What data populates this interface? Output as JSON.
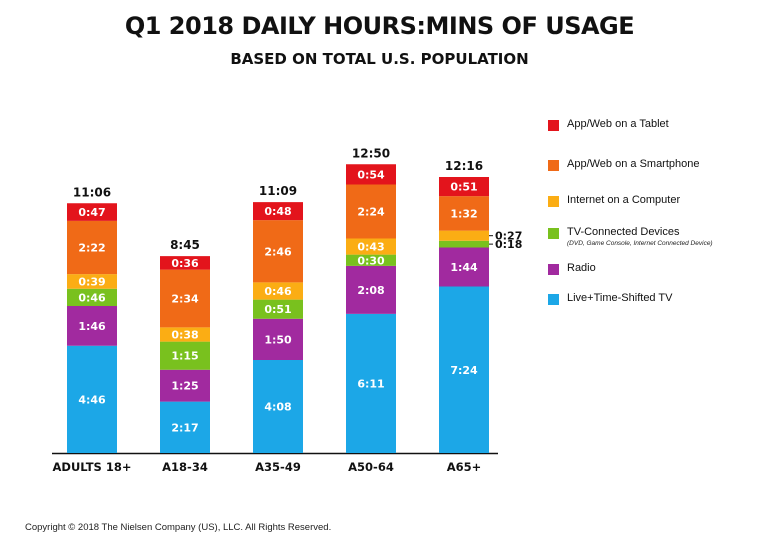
{
  "title": "Q1 2018 DAILY HOURS:MINS OF USAGE",
  "subtitle": "BASED ON TOTAL U.S. POPULATION",
  "copyright": "Copyright © 2018 The Nielsen Company (US), LLC. All Rights Reserved.",
  "chart_data": {
    "type": "bar",
    "stacked": true,
    "categories": [
      "ADULTS 18+",
      "A18-34",
      "A35-49",
      "A50-64",
      "A65+"
    ],
    "totals": [
      "11:06",
      "8:45",
      "11:09",
      "12:50",
      "12:16"
    ],
    "series": [
      {
        "name": "Live+Time-Shifted TV",
        "color": "#1ca7e7",
        "values": [
          "4:46",
          "2:17",
          "4:08",
          "6:11",
          "7:24"
        ]
      },
      {
        "name": "Radio",
        "color": "#a12a9f",
        "values": [
          "1:46",
          "1:25",
          "1:50",
          "2:08",
          "1:44"
        ]
      },
      {
        "name": "TV-Connected Devices",
        "color": "#79c11e",
        "values": [
          "0:46",
          "1:15",
          "0:51",
          "0:30",
          "0:18"
        ]
      },
      {
        "name": "Internet on a Computer",
        "color": "#fbad14",
        "values": [
          "0:39",
          "0:38",
          "0:46",
          "0:43",
          "0:27"
        ]
      },
      {
        "name": "App/Web on a Smartphone",
        "color": "#f06a17",
        "values": [
          "2:22",
          "2:34",
          "2:46",
          "2:24",
          "1:32"
        ]
      },
      {
        "name": "App/Web on a Tablet",
        "color": "#e3141c",
        "values": [
          "0:47",
          "0:36",
          "0:48",
          "0:54",
          "0:51"
        ]
      }
    ],
    "legend_position": "right",
    "legend_order": [
      "App/Web on a Tablet",
      "App/Web on a Smartphone",
      "Internet on a Computer",
      "TV-Connected Devices",
      "Radio",
      "Live+Time-Shifted TV"
    ],
    "legend_notes": {
      "TV-Connected Devices": "(DVD, Game Console, Internet Connected Device)"
    },
    "grid": false
  }
}
